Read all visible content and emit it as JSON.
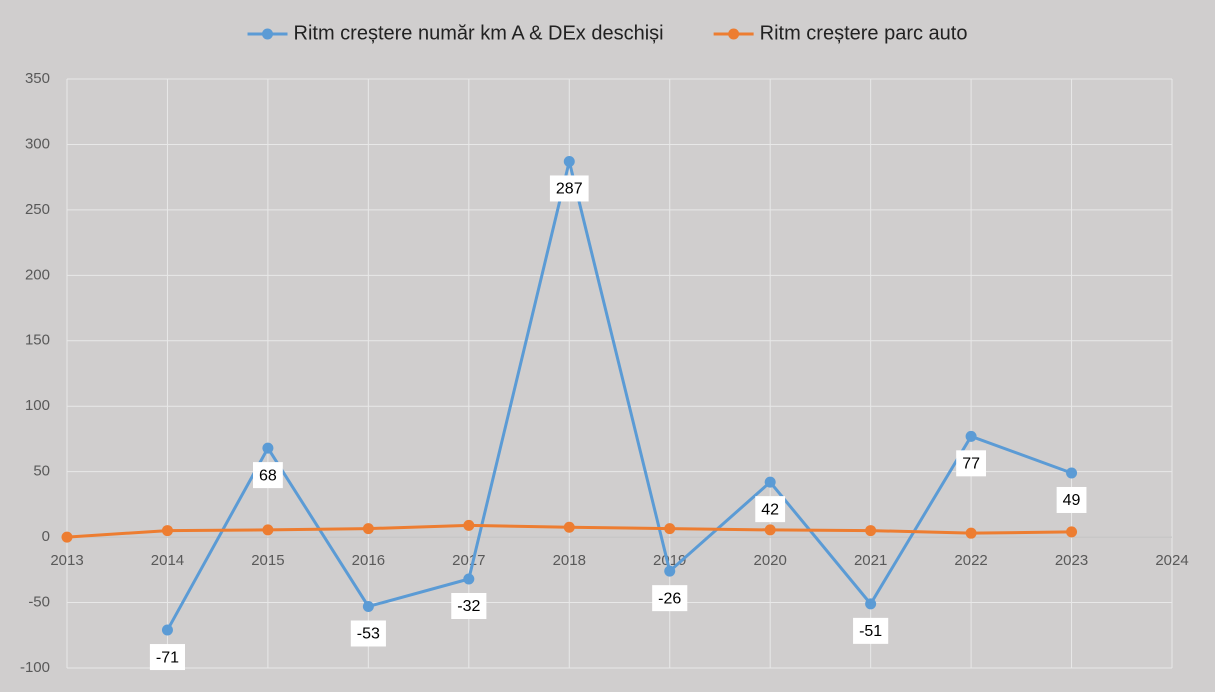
{
  "chart_data": {
    "type": "line",
    "x": [
      2013,
      2014,
      2015,
      2016,
      2017,
      2018,
      2019,
      2020,
      2021,
      2022,
      2023
    ],
    "series": [
      {
        "name": "Ritm creștere număr km A & DEx deschiși",
        "color": "#5b9bd5",
        "values": [
          null,
          -71,
          68,
          -53,
          -32,
          287,
          -26,
          42,
          -51,
          77,
          49
        ],
        "data_labels": true
      },
      {
        "name": "Ritm creștere parc auto",
        "color": "#ed7d31",
        "values": [
          0,
          5,
          5.5,
          6.5,
          9,
          7.5,
          6.5,
          5.5,
          5,
          3,
          4
        ],
        "data_labels": false
      }
    ],
    "xlim": [
      2013,
      2024
    ],
    "xticks": [
      2013,
      2014,
      2015,
      2016,
      2017,
      2018,
      2019,
      2020,
      2021,
      2022,
      2023,
      2024
    ],
    "ylim": [
      -100,
      350
    ],
    "yticks": [
      -100,
      -50,
      0,
      50,
      100,
      150,
      200,
      250,
      300,
      350
    ],
    "grid": true,
    "legend": "top"
  }
}
